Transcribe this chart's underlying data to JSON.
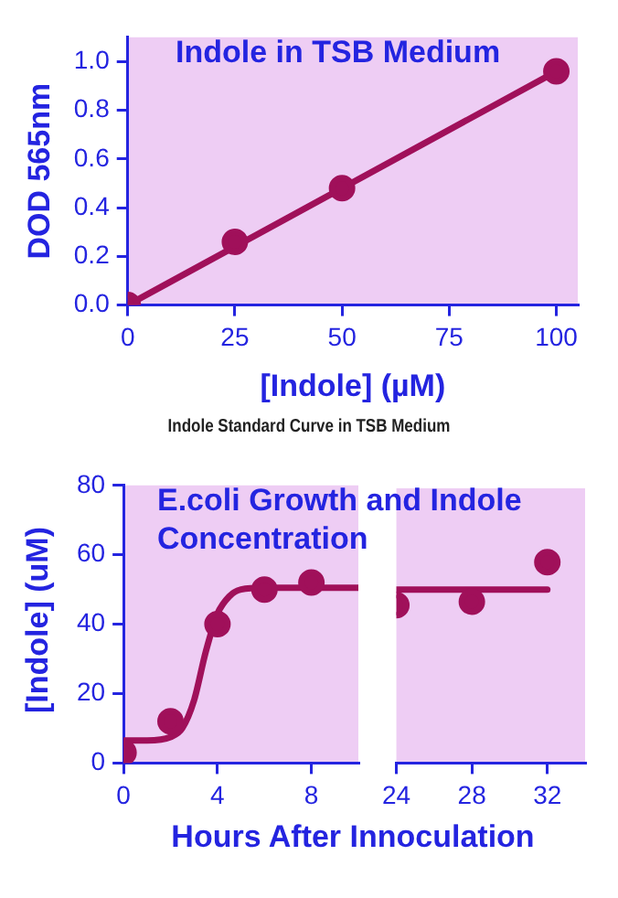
{
  "chart_data": [
    {
      "type": "scatter",
      "title": "Indole in TSB Medium",
      "xlabel": "[Indole] (µM)",
      "ylabel": "DOD 565nm",
      "xlim": [
        0,
        105
      ],
      "ylim": [
        0,
        1.1
      ],
      "xticks": [
        0,
        25,
        50,
        75,
        100
      ],
      "yticks": [
        {
          "value": 0,
          "label": "0.0"
        },
        {
          "value": 0.2,
          "label": "0.2"
        },
        {
          "value": 0.4,
          "label": "0.4"
        },
        {
          "value": 0.6,
          "label": "0.6"
        },
        {
          "value": 0.8,
          "label": "0.8"
        },
        {
          "value": 1,
          "label": "1.0"
        }
      ],
      "annotations": [
        "Indole Standard Curve in TSB Medium"
      ],
      "series": [
        {
          "type": "line",
          "color": "#a0105a",
          "marker": "none",
          "x": [
            0,
            100
          ],
          "values": [
            0,
            0.96
          ]
        },
        {
          "type": "scatter",
          "color": "#a0105a",
          "marker": "circle",
          "x": [
            0,
            25,
            50,
            100
          ],
          "values": [
            0,
            0.26,
            0.48,
            0.96
          ]
        }
      ]
    },
    {
      "type": "scatter",
      "title": "E.coli Growth and Indole Concentration",
      "xlabel": "Hours After Innoculation",
      "ylabel": "[Indole] (uM)",
      "xlim": [
        0,
        10
      ],
      "ylim": [
        0,
        80
      ],
      "xticks": [
        0,
        4,
        8
      ],
      "yticks": [
        0,
        20,
        40,
        60,
        80
      ],
      "series": [
        {
          "type": "line",
          "color": "#a0105a",
          "marker": "none",
          "x": [
            0,
            1,
            2,
            2.5,
            3,
            3.5,
            4,
            4.5,
            5,
            6,
            8,
            10
          ],
          "values": [
            6.5,
            6.5,
            7.5,
            10,
            18,
            32,
            43,
            48,
            50,
            50.5,
            50.5,
            50.5
          ]
        },
        {
          "type": "scatter",
          "color": "#a0105a",
          "marker": "circle",
          "x": [
            0,
            2,
            4,
            6,
            8
          ],
          "values": [
            3,
            12,
            40,
            50,
            52
          ]
        }
      ]
    },
    {
      "type": "scatter",
      "xlim": [
        24,
        34
      ],
      "ylim": [
        0,
        80
      ],
      "xticks": [
        24,
        28,
        32
      ],
      "yticks": [
        0,
        20,
        40,
        60,
        80
      ],
      "tick_labels": "x",
      "series": [
        {
          "type": "line",
          "color": "#a0105a",
          "marker": "none",
          "x": [
            24,
            32
          ],
          "values": [
            50.5,
            50.5
          ]
        },
        {
          "type": "scatter",
          "color": "#a0105a",
          "marker": "circle",
          "x": [
            24,
            28,
            32
          ],
          "values": [
            46,
            47,
            58.5
          ]
        }
      ]
    }
  ]
}
